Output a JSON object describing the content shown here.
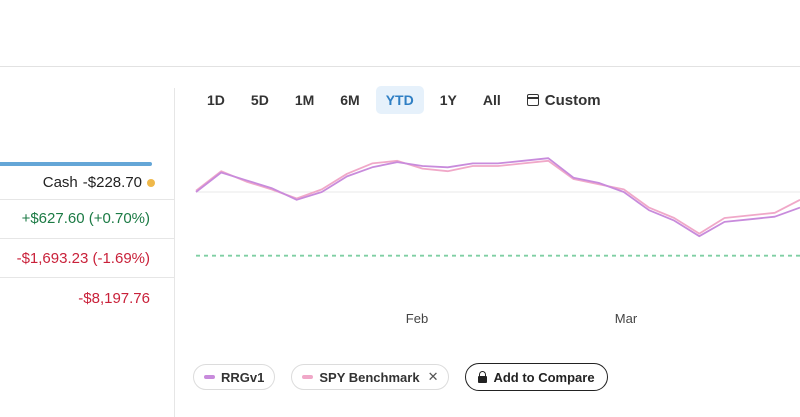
{
  "summary": {
    "cash_label": "Cash",
    "cash_value": "-$228.70",
    "allocation_fill_fraction": 1.0,
    "gain_today": "+$627.60 (+0.70%)",
    "loss_total": "-$1,693.23 (-1.69%)",
    "loss_value": "-$8,197.76"
  },
  "timeframes": [
    {
      "label": "1D"
    },
    {
      "label": "5D"
    },
    {
      "label": "1M"
    },
    {
      "label": "6M"
    },
    {
      "label": "YTD",
      "active": true
    },
    {
      "label": "1Y"
    },
    {
      "label": "All"
    },
    {
      "label": "Custom",
      "icon": "calendar-icon"
    }
  ],
  "legend": {
    "series_1": "RRGv1",
    "series_2": "SPY Benchmark",
    "compare_label": "Add to Compare"
  },
  "colors": {
    "series_1": "#c88bdc",
    "series_2": "#f0a8c8",
    "baseline": "#7fcfa3",
    "active_tab": "#2f7fc4",
    "positive": "#1b7a44",
    "negative": "#c9213a",
    "cash_dot": "#efb84a"
  },
  "chart_data": {
    "type": "line",
    "x_ticks": [
      "Feb",
      "Mar"
    ],
    "series": [
      {
        "name": "RRGv1",
        "values": [
          0.0,
          1.5,
          0.9,
          0.3,
          -0.6,
          0.0,
          1.2,
          1.9,
          2.3,
          2.0,
          1.9,
          2.2,
          2.2,
          2.4,
          2.6,
          1.1,
          0.7,
          0.0,
          -1.4,
          -2.2,
          -3.4,
          -2.3,
          -2.1,
          -1.9,
          -1.2
        ]
      },
      {
        "name": "SPY Benchmark",
        "values": [
          0.1,
          1.6,
          0.8,
          0.2,
          -0.5,
          0.2,
          1.4,
          2.2,
          2.4,
          1.8,
          1.6,
          2.0,
          2.0,
          2.2,
          2.4,
          1.0,
          0.6,
          0.2,
          -1.2,
          -2.0,
          -3.2,
          -2.0,
          -1.8,
          -1.6,
          -0.6
        ]
      }
    ],
    "baseline": -4.9,
    "ylim": [
      -6,
      4
    ]
  }
}
